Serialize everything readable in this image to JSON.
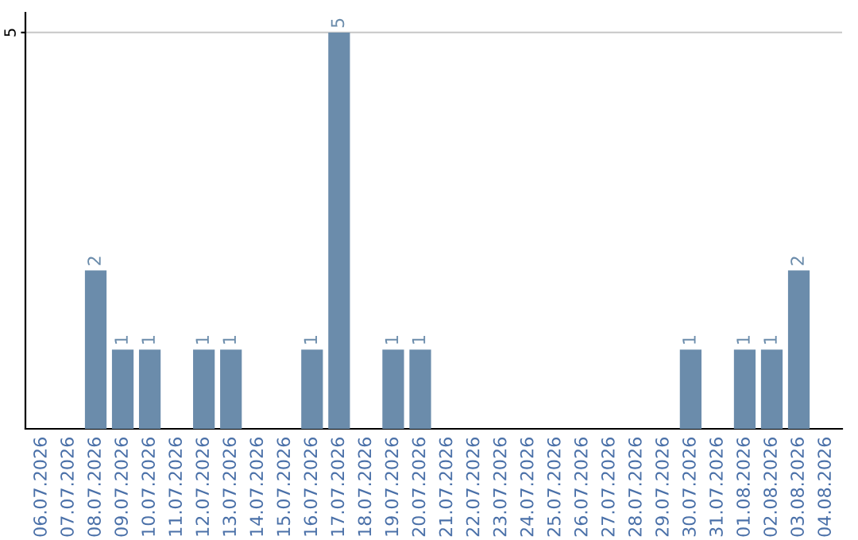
{
  "chart_data": {
    "type": "bar",
    "categories": [
      "06.07.2026",
      "07.07.2026",
      "08.07.2026",
      "09.07.2026",
      "10.07.2026",
      "11.07.2026",
      "12.07.2026",
      "13.07.2026",
      "14.07.2026",
      "15.07.2026",
      "16.07.2026",
      "17.07.2026",
      "18.07.2026",
      "19.07.2026",
      "20.07.2026",
      "21.07.2026",
      "22.07.2026",
      "23.07.2026",
      "24.07.2026",
      "25.07.2026",
      "26.07.2026",
      "27.07.2026",
      "28.07.2026",
      "29.07.2026",
      "30.07.2026",
      "31.07.2026",
      "01.08.2026",
      "02.08.2026",
      "03.08.2026",
      "04.08.2026"
    ],
    "values": [
      0,
      0,
      2,
      1,
      1,
      0,
      1,
      1,
      0,
      0,
      1,
      5,
      0,
      1,
      1,
      0,
      0,
      0,
      0,
      0,
      0,
      0,
      0,
      0,
      1,
      0,
      1,
      1,
      2,
      0
    ],
    "value_labels": [
      null,
      null,
      "2",
      "1",
      "1",
      null,
      "1",
      "1",
      null,
      null,
      "1",
      "5",
      null,
      "1",
      "1",
      null,
      null,
      null,
      null,
      null,
      null,
      null,
      null,
      null,
      "1",
      null,
      "1",
      "1",
      "2",
      null
    ],
    "color": "#6b8cab",
    "ylim": [
      0,
      5.25
    ],
    "yticks": [
      5
    ],
    "grid": "y"
  }
}
